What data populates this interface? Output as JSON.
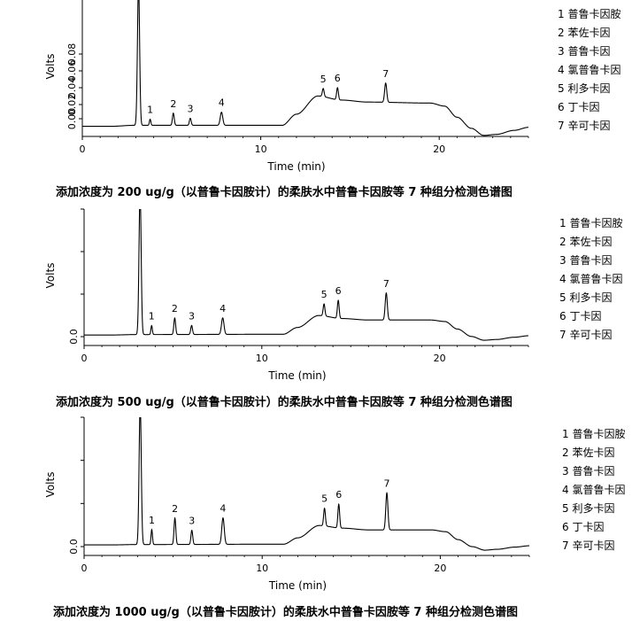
{
  "chart_data": [
    {
      "type": "line",
      "title": "",
      "xlabel": "Time (min)",
      "ylabel": "Volts",
      "xlim": [
        0,
        25
      ],
      "ylim": [
        -0.01,
        0.125
      ],
      "x_ticks": [
        "0",
        "10",
        "20"
      ],
      "y_ticks": [
        "0.00",
        "0.02",
        "0.04",
        "0.06",
        "0.08"
      ],
      "caption": "添加浓度为 200 ug/g（以普鲁卡因胺计）的柔肤水中普鲁卡因胺等 7 种组分检测色谱图",
      "legend": [
        "1 普鲁卡因胺",
        "2 苯佐卡因",
        "3 普鲁卡因",
        "4 氯普鲁卡因",
        "5 利多卡因",
        "6 丁卡因",
        "7 辛可卡因"
      ],
      "series": [
        {
          "baseline": [
            [
              0,
              0.0
            ],
            [
              1.6,
              0.0
            ],
            [
              2.9,
              0.001
            ],
            [
              11.2,
              0.001
            ],
            [
              12.0,
              0.012
            ],
            [
              13.2,
              0.03
            ],
            [
              14.5,
              0.026
            ],
            [
              16.0,
              0.024
            ],
            [
              19.5,
              0.023
            ],
            [
              20.3,
              0.02
            ],
            [
              21.0,
              0.009
            ],
            [
              21.8,
              -0.002
            ],
            [
              22.5,
              -0.009
            ],
            [
              23.2,
              -0.008
            ],
            [
              24.2,
              -0.004
            ],
            [
              25.0,
              -0.001
            ]
          ],
          "peaks": [
            {
              "label": "",
              "rt": 3.15,
              "height": 0.14,
              "width": 0.06
            },
            {
              "label": "1",
              "rt": 3.8,
              "height": 0.006,
              "width": 0.04
            },
            {
              "label": "2",
              "rt": 5.1,
              "height": 0.012,
              "width": 0.05
            },
            {
              "label": "3",
              "rt": 6.05,
              "height": 0.007,
              "width": 0.05
            },
            {
              "label": "4",
              "rt": 7.8,
              "height": 0.013,
              "width": 0.07
            },
            {
              "label": "5",
              "rt": 13.5,
              "height": 0.008,
              "width": 0.05
            },
            {
              "label": "6",
              "rt": 14.3,
              "height": 0.012,
              "width": 0.05
            },
            {
              "label": "7",
              "rt": 17.0,
              "height": 0.019,
              "width": 0.06
            }
          ]
        }
      ]
    },
    {
      "type": "line",
      "title": "",
      "xlabel": "Time (min)",
      "ylabel": "Volts",
      "xlim": [
        0,
        25
      ],
      "ylim": [
        -0.07,
        0.84
      ],
      "x_ticks": [
        "0",
        "10",
        "20"
      ],
      "y_ticks": [
        "0.0"
      ],
      "caption": "添加浓度为 500 ug/g（以普鲁卡因胺计）的柔肤水中普鲁卡因胺等 7 种组分检测色谱图",
      "legend": [
        "1 普鲁卡因胺",
        "2 苯佐卡因",
        "3 普鲁卡因",
        "4 氯普鲁卡因",
        "5 利多卡因",
        "6 丁卡因",
        "7 辛可卡因"
      ],
      "series": [
        {
          "baseline": [
            [
              0,
              0.0
            ],
            [
              1.6,
              0.0
            ],
            [
              2.9,
              0.003
            ],
            [
              11.2,
              0.005
            ],
            [
              12.0,
              0.05
            ],
            [
              13.2,
              0.13
            ],
            [
              14.5,
              0.11
            ],
            [
              16.0,
              0.1
            ],
            [
              19.5,
              0.1
            ],
            [
              20.3,
              0.09
            ],
            [
              21.0,
              0.04
            ],
            [
              21.8,
              -0.01
            ],
            [
              22.5,
              -0.035
            ],
            [
              23.2,
              -0.03
            ],
            [
              24.2,
              -0.015
            ],
            [
              25.0,
              -0.005
            ]
          ],
          "peaks": [
            {
              "label": "",
              "rt": 3.15,
              "height": 0.95,
              "width": 0.06
            },
            {
              "label": "1",
              "rt": 3.8,
              "height": 0.06,
              "width": 0.04
            },
            {
              "label": "2",
              "rt": 5.1,
              "height": 0.11,
              "width": 0.05
            },
            {
              "label": "3",
              "rt": 6.05,
              "height": 0.06,
              "width": 0.05
            },
            {
              "label": "4",
              "rt": 7.8,
              "height": 0.11,
              "width": 0.07
            },
            {
              "label": "5",
              "rt": 13.5,
              "height": 0.08,
              "width": 0.05
            },
            {
              "label": "6",
              "rt": 14.3,
              "height": 0.12,
              "width": 0.05
            },
            {
              "label": "7",
              "rt": 17.0,
              "height": 0.18,
              "width": 0.06
            }
          ]
        }
      ]
    },
    {
      "type": "line",
      "title": "",
      "xlabel": "Time (min)",
      "ylabel": "Volts",
      "xlim": [
        0,
        25
      ],
      "ylim": [
        -0.12,
        1.45
      ],
      "x_ticks": [
        "0",
        "10",
        "20"
      ],
      "y_ticks": [
        "0.0"
      ],
      "caption": "添加浓度为 1000 ug/g（以普鲁卡因胺计）的柔肤水中普鲁卡因胺等 7 种组分检测色谱图",
      "legend": [
        "1 普鲁卡因胺",
        "2 苯佐卡因",
        "3 普鲁卡因",
        "4 氯普鲁卡因",
        "5 利多卡因",
        "6 丁卡因",
        "7 辛可卡因"
      ],
      "series": [
        {
          "baseline": [
            [
              0,
              0.0
            ],
            [
              1.6,
              0.0
            ],
            [
              2.9,
              0.004
            ],
            [
              11.2,
              0.008
            ],
            [
              12.0,
              0.08
            ],
            [
              13.2,
              0.22
            ],
            [
              14.5,
              0.19
            ],
            [
              16.0,
              0.17
            ],
            [
              19.5,
              0.17
            ],
            [
              20.3,
              0.15
            ],
            [
              21.0,
              0.06
            ],
            [
              21.8,
              -0.02
            ],
            [
              22.5,
              -0.06
            ],
            [
              23.2,
              -0.05
            ],
            [
              24.2,
              -0.025
            ],
            [
              25.0,
              -0.01
            ]
          ],
          "peaks": [
            {
              "label": "",
              "rt": 3.15,
              "height": 1.6,
              "width": 0.06
            },
            {
              "label": "1",
              "rt": 3.8,
              "height": 0.17,
              "width": 0.04
            },
            {
              "label": "2",
              "rt": 5.1,
              "height": 0.3,
              "width": 0.05
            },
            {
              "label": "3",
              "rt": 6.05,
              "height": 0.16,
              "width": 0.05
            },
            {
              "label": "4",
              "rt": 7.8,
              "height": 0.3,
              "width": 0.07
            },
            {
              "label": "5",
              "rt": 13.5,
              "height": 0.2,
              "width": 0.05
            },
            {
              "label": "6",
              "rt": 14.3,
              "height": 0.27,
              "width": 0.05
            },
            {
              "label": "7",
              "rt": 17.0,
              "height": 0.42,
              "width": 0.06
            }
          ]
        }
      ]
    }
  ]
}
